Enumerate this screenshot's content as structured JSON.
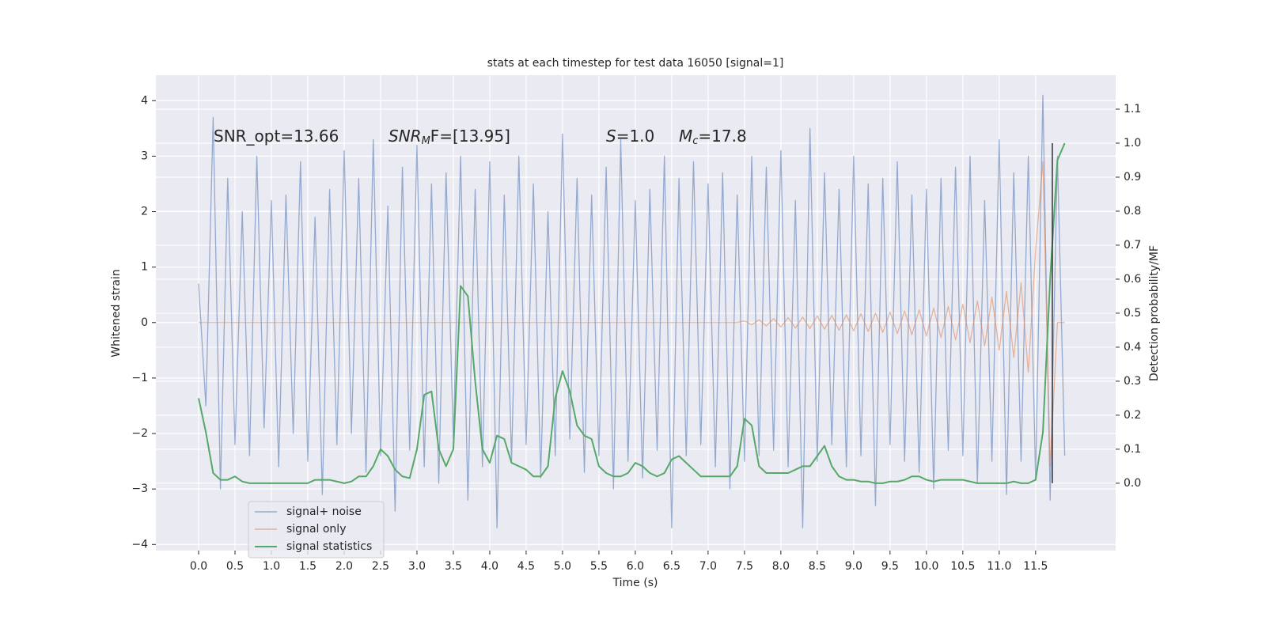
{
  "chart_data": {
    "type": "line",
    "title": "stats at each timestep for test data 16050 [signal=1]",
    "xlabel": "Time (s)",
    "ylabel": "Whitened strain",
    "y2label": "Detection probability/MF",
    "annotations": [
      {
        "parts": [
          "SNR_opt=13.66"
        ]
      },
      {
        "parts": [
          "SNR",
          "M",
          "F=[13.95]"
        ]
      },
      {
        "parts": [
          "S",
          "=1.0"
        ]
      },
      {
        "parts": [
          "M",
          "c",
          "=17.8"
        ]
      }
    ],
    "x": [
      0,
      0.1,
      0.2,
      0.3,
      0.4,
      0.5,
      0.6,
      0.7,
      0.8,
      0.9,
      1,
      1.1,
      1.2,
      1.3,
      1.4,
      1.5,
      1.6,
      1.7,
      1.8,
      1.9,
      2,
      2.1,
      2.2,
      2.3,
      2.4,
      2.5,
      2.6,
      2.7,
      2.8,
      2.9,
      3,
      3.1,
      3.2,
      3.3,
      3.4,
      3.5,
      3.6,
      3.7,
      3.8,
      3.9,
      4,
      4.1,
      4.2,
      4.3,
      4.4,
      4.5,
      4.6,
      4.7,
      4.8,
      4.9,
      5,
      5.1,
      5.2,
      5.3,
      5.4,
      5.5,
      5.6,
      5.7,
      5.8,
      5.9,
      6,
      6.1,
      6.2,
      6.3,
      6.4,
      6.5,
      6.6,
      6.7,
      6.8,
      6.9,
      7,
      7.1,
      7.2,
      7.3,
      7.4,
      7.5,
      7.6,
      7.7,
      7.8,
      7.9,
      8,
      8.1,
      8.2,
      8.3,
      8.4,
      8.5,
      8.6,
      8.7,
      8.8,
      8.9,
      9,
      9.1,
      9.2,
      9.3,
      9.4,
      9.5,
      9.6,
      9.7,
      9.8,
      9.9,
      10,
      10.1,
      10.2,
      10.3,
      10.4,
      10.5,
      10.6,
      10.7,
      10.8,
      10.9,
      11,
      11.1,
      11.2,
      11.3,
      11.4,
      11.5,
      11.6,
      11.7,
      11.8,
      11.9
    ],
    "series": [
      {
        "name": "signal+ noise",
        "color": "#4c72b0",
        "values": [
          0.7,
          -1.5,
          3.7,
          -3.0,
          2.6,
          -2.2,
          2.0,
          -2.4,
          3.0,
          -1.9,
          2.2,
          -2.6,
          2.3,
          -2.0,
          2.9,
          -2.5,
          1.9,
          -3.1,
          2.4,
          -2.2,
          3.1,
          -2.0,
          2.6,
          -2.7,
          3.3,
          -2.4,
          2.1,
          -3.4,
          2.8,
          -2.3,
          3.2,
          -2.6,
          2.5,
          -2.9,
          2.7,
          -2.1,
          3.0,
          -3.2,
          2.4,
          -2.6,
          2.9,
          -3.7,
          2.3,
          -2.5,
          3.0,
          -2.2,
          2.5,
          -2.8,
          2.0,
          -2.4,
          3.4,
          -2.1,
          2.6,
          -2.7,
          2.3,
          -2.4,
          2.8,
          -3.0,
          3.3,
          -2.5,
          2.2,
          -2.8,
          2.4,
          -2.3,
          3.0,
          -3.7,
          2.6,
          -2.4,
          2.9,
          -2.2,
          2.5,
          -2.6,
          2.7,
          -3.0,
          2.3,
          -2.5,
          3.0,
          -2.4,
          2.8,
          -2.3,
          3.1,
          -2.6,
          2.2,
          -3.7,
          3.5,
          -2.5,
          2.7,
          -2.2,
          2.4,
          -2.6,
          3.0,
          -2.4,
          2.5,
          -3.3,
          2.6,
          -2.2,
          2.9,
          -2.5,
          2.3,
          -2.7,
          2.4,
          -3.0,
          2.6,
          -2.3,
          2.8,
          -2.4,
          3.0,
          -2.9,
          2.2,
          -2.5,
          3.3,
          -3.1,
          2.7,
          -2.5,
          3.0,
          -2.8,
          4.1,
          -3.2,
          3.0,
          -2.4
        ]
      },
      {
        "name": "signal only",
        "color": "#dd8452",
        "values": [
          0,
          0,
          0,
          0,
          0,
          0,
          0,
          0,
          0,
          0,
          0,
          0,
          0,
          0,
          0,
          0,
          0,
          0,
          0,
          0,
          0,
          0,
          0,
          0,
          0,
          0,
          0,
          0,
          0,
          0,
          0,
          0,
          0,
          0,
          0,
          0,
          0,
          0,
          0,
          0,
          0,
          0,
          0,
          0,
          0,
          0,
          0,
          0,
          0,
          0,
          0,
          0,
          0,
          0,
          0,
          0,
          0,
          0,
          0,
          0,
          0,
          0,
          0,
          0,
          0,
          0,
          0,
          0,
          0,
          0,
          0,
          0,
          0,
          0,
          0,
          0.03,
          -0.04,
          0.05,
          -0.06,
          0.07,
          -0.08,
          0.09,
          -0.1,
          0.1,
          -0.11,
          0.12,
          -0.12,
          0.13,
          -0.14,
          0.14,
          -0.15,
          0.16,
          -0.16,
          0.17,
          -0.18,
          0.19,
          -0.2,
          0.21,
          -0.22,
          0.23,
          -0.24,
          0.26,
          -0.27,
          0.29,
          -0.31,
          0.33,
          -0.36,
          0.39,
          -0.42,
          0.46,
          -0.5,
          0.56,
          -0.63,
          0.72,
          -0.9,
          1.3,
          2.9,
          -2.6,
          0,
          0
        ]
      },
      {
        "name": "signal statistics",
        "color": "#55a868",
        "axis": "y2",
        "values": [
          0.25,
          0.15,
          0.03,
          0.01,
          0.01,
          0.02,
          0.005,
          0,
          0,
          0,
          0,
          0,
          0,
          0,
          0,
          0,
          0.01,
          0.01,
          0.01,
          0.005,
          0,
          0.005,
          0.02,
          0.02,
          0.05,
          0.1,
          0.08,
          0.04,
          0.02,
          0.015,
          0.1,
          0.26,
          0.27,
          0.1,
          0.05,
          0.1,
          0.58,
          0.55,
          0.3,
          0.1,
          0.06,
          0.14,
          0.13,
          0.06,
          0.05,
          0.04,
          0.02,
          0.02,
          0.05,
          0.25,
          0.33,
          0.27,
          0.17,
          0.14,
          0.13,
          0.05,
          0.03,
          0.02,
          0.02,
          0.03,
          0.06,
          0.05,
          0.03,
          0.02,
          0.03,
          0.07,
          0.08,
          0.06,
          0.04,
          0.02,
          0.02,
          0.02,
          0.02,
          0.02,
          0.05,
          0.19,
          0.17,
          0.05,
          0.03,
          0.03,
          0.03,
          0.03,
          0.04,
          0.05,
          0.05,
          0.08,
          0.11,
          0.05,
          0.02,
          0.01,
          0.01,
          0.005,
          0.005,
          0,
          0,
          0.005,
          0.005,
          0.01,
          0.02,
          0.02,
          0.01,
          0.005,
          0.01,
          0.01,
          0.01,
          0.01,
          0.005,
          0,
          0,
          0,
          0,
          0,
          0.005,
          0,
          0,
          0.01,
          0.15,
          0.6,
          0.95,
          1.0
        ]
      }
    ],
    "vline": {
      "x": 11.73,
      "y2": [
        0,
        1.0
      ],
      "color": "#333333"
    },
    "xlim": [
      -0.587,
      12.6
    ],
    "ylim": [
      -4.11,
      4.46
    ],
    "y2lim": [
      -0.198,
      1.2
    ],
    "xticks": [
      {
        "value": 0,
        "label": "0.0"
      },
      {
        "value": 0.5,
        "label": "0.5"
      },
      {
        "value": 1,
        "label": "1.0"
      },
      {
        "value": 1.5,
        "label": "1.5"
      },
      {
        "value": 2,
        "label": "2.0"
      },
      {
        "value": 2.5,
        "label": "2.5"
      },
      {
        "value": 3,
        "label": "3.0"
      },
      {
        "value": 3.5,
        "label": "3.5"
      },
      {
        "value": 4,
        "label": "4.0"
      },
      {
        "value": 4.5,
        "label": "4.5"
      },
      {
        "value": 5,
        "label": "5.0"
      },
      {
        "value": 5.5,
        "label": "5.5"
      },
      {
        "value": 6,
        "label": "6.0"
      },
      {
        "value": 6.5,
        "label": "6.5"
      },
      {
        "value": 7,
        "label": "7.0"
      },
      {
        "value": 7.5,
        "label": "7.5"
      },
      {
        "value": 8,
        "label": "8.0"
      },
      {
        "value": 8.5,
        "label": "8.5"
      },
      {
        "value": 9,
        "label": "9.0"
      },
      {
        "value": 9.5,
        "label": "9.5"
      },
      {
        "value": 10,
        "label": "10.0"
      },
      {
        "value": 10.5,
        "label": "10.5"
      },
      {
        "value": 11,
        "label": "11.0"
      },
      {
        "value": 11.5,
        "label": "11.5"
      }
    ],
    "yticks": [
      {
        "value": -4,
        "label": "−4"
      },
      {
        "value": -3,
        "label": "−3"
      },
      {
        "value": -2,
        "label": "−2"
      },
      {
        "value": -1,
        "label": "−1"
      },
      0,
      1,
      2,
      3,
      4
    ],
    "y2ticks": [
      {
        "value": 0,
        "label": "0.0"
      },
      {
        "value": 0.1,
        "label": "0.1"
      },
      {
        "value": 0.2,
        "label": "0.2"
      },
      {
        "value": 0.3,
        "label": "0.3"
      },
      {
        "value": 0.4,
        "label": "0.4"
      },
      {
        "value": 0.5,
        "label": "0.5"
      },
      {
        "value": 0.6,
        "label": "0.6"
      },
      {
        "value": 0.7,
        "label": "0.7"
      },
      {
        "value": 0.8,
        "label": "0.8"
      },
      {
        "value": 0.9,
        "label": "0.9"
      },
      {
        "value": 1.0,
        "label": "1.0"
      },
      {
        "value": 1.1,
        "label": "1.1"
      }
    ],
    "grid": true,
    "legend": "lower left"
  }
}
